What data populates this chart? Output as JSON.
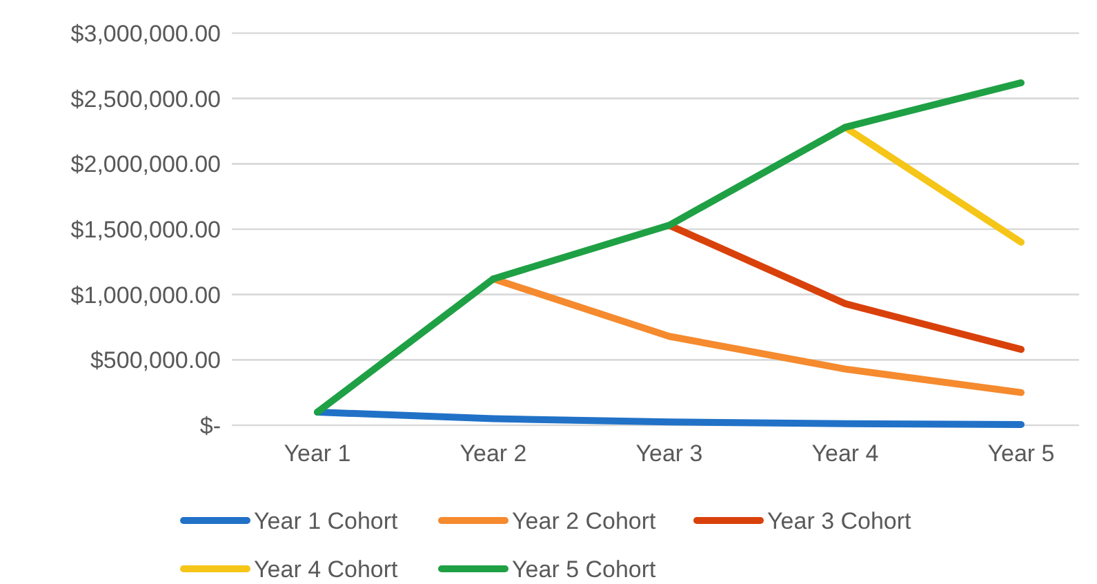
{
  "chart_data": {
    "type": "line",
    "categories": [
      "Year 1",
      "Year 2",
      "Year 3",
      "Year 4",
      "Year 5"
    ],
    "series": [
      {
        "name": "Year 1 Cohort",
        "color": "#2171c7",
        "values": [
          100000,
          50000,
          25000,
          12000,
          5000
        ]
      },
      {
        "name": "Year 2 Cohort",
        "color": "#f58a2e",
        "values": [
          null,
          1120000,
          680000,
          430000,
          250000
        ]
      },
      {
        "name": "Year 3 Cohort",
        "color": "#d9410b",
        "values": [
          null,
          null,
          1530000,
          930000,
          580000
        ]
      },
      {
        "name": "Year 4 Cohort",
        "color": "#f5c518",
        "values": [
          null,
          null,
          null,
          2280000,
          1400000
        ]
      },
      {
        "name": "Year 5 Cohort",
        "color": "#1fa045",
        "values": [
          100000,
          1120000,
          1530000,
          2280000,
          2620000
        ]
      }
    ],
    "ylim": [
      0,
      3000000
    ],
    "yticks": [
      {
        "value": 0,
        "label": "$-"
      },
      {
        "value": 500000,
        "label": "$500,000.00"
      },
      {
        "value": 1000000,
        "label": "$1,000,000.00"
      },
      {
        "value": 1500000,
        "label": "$1,500,000.00"
      },
      {
        "value": 2000000,
        "label": "$2,000,000.00"
      },
      {
        "value": 2500000,
        "label": "$2,500,000.00"
      },
      {
        "value": 3000000,
        "label": "$3,000,000.00"
      }
    ],
    "grid": "y",
    "legend": "bottom",
    "marker": "none",
    "line_style": "solid"
  }
}
